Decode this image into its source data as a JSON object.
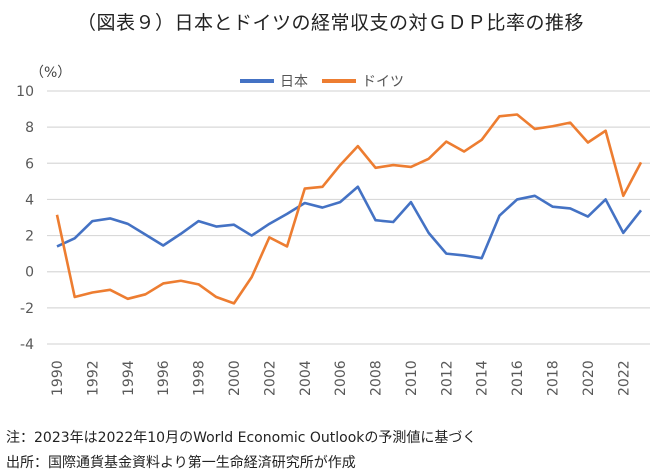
{
  "chart_data": {
    "type": "line",
    "title": "（図表９）日本とドイツの経常収支の対ＧＤＰ比率の推移",
    "ylabel": "（%）",
    "ylim": [
      -4,
      10
    ],
    "yticks": [
      -4,
      -2,
      0,
      2,
      4,
      6,
      8,
      10
    ],
    "x": [
      1990,
      1991,
      1992,
      1993,
      1994,
      1995,
      1996,
      1997,
      1998,
      1999,
      2000,
      2001,
      2002,
      2003,
      2004,
      2005,
      2006,
      2007,
      2008,
      2009,
      2010,
      2011,
      2012,
      2013,
      2014,
      2015,
      2016,
      2017,
      2018,
      2019,
      2020,
      2021,
      2022,
      2023
    ],
    "xticks": [
      1990,
      1992,
      1994,
      1996,
      1998,
      2000,
      2002,
      2004,
      2006,
      2008,
      2010,
      2012,
      2014,
      2016,
      2018,
      2020,
      2022
    ],
    "grid": true,
    "legend_position": "top",
    "series": [
      {
        "name": "日本",
        "color": "#4472C4",
        "values": [
          1.4,
          1.85,
          2.8,
          2.95,
          2.65,
          2.05,
          1.45,
          2.1,
          2.8,
          2.5,
          2.6,
          2.0,
          2.65,
          3.2,
          3.8,
          3.55,
          3.85,
          4.7,
          2.85,
          2.75,
          3.85,
          2.15,
          1.0,
          0.9,
          0.75,
          3.1,
          4.0,
          4.2,
          3.6,
          3.5,
          3.05,
          4.0,
          2.15,
          3.4
        ]
      },
      {
        "name": "ドイツ",
        "color": "#ED7D31",
        "values": [
          3.15,
          -1.4,
          -1.15,
          -1.0,
          -1.5,
          -1.25,
          -0.65,
          -0.5,
          -0.7,
          -1.4,
          -1.75,
          -0.3,
          1.9,
          1.4,
          4.6,
          4.7,
          5.9,
          6.95,
          5.75,
          5.9,
          5.8,
          6.25,
          7.2,
          6.65,
          7.3,
          8.6,
          8.7,
          7.9,
          8.05,
          8.25,
          7.15,
          7.8,
          4.2,
          6.05
        ]
      }
    ]
  },
  "notes": [
    "注：2023年は2022年10月のWorld Economic Outlookの予測値に基づく",
    "出所：国際通貨基金資料より第一生命経済研究所が作成"
  ]
}
